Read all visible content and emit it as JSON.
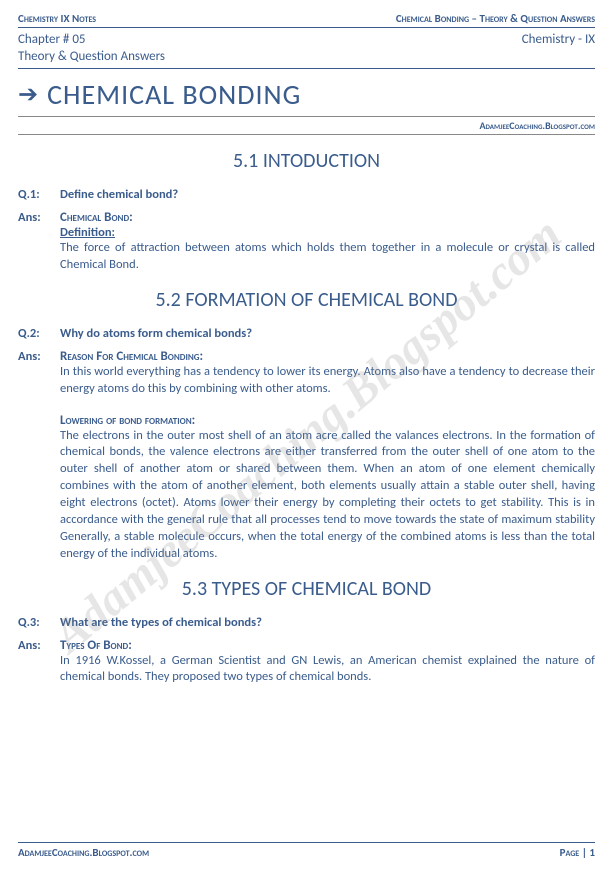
{
  "colors": {
    "primary": "#3a5c8c",
    "text": "#3a5c8c",
    "rule": "#888888",
    "watermark": "rgba(140,140,140,0.22)",
    "background": "#ffffff"
  },
  "typography": {
    "body_font": "Calibri, Segoe UI, Arial, sans-serif",
    "watermark_font": "Georgia, Times New Roman, serif",
    "main_title_size": 28,
    "section_title_size": 20,
    "body_size": 12.5,
    "header_size": 11
  },
  "header": {
    "left": "Chemistry IX Notes",
    "right": "Chemical Bonding – Theory & Question Answers",
    "chapter": "Chapter # 05",
    "grade": "Chemistry - IX",
    "subtitle": "Theory & Question Answers"
  },
  "title": {
    "arrow": "➔",
    "text": "CHEMICAL BONDING"
  },
  "blog": "AdamjeeCoaching.Blogspot.com",
  "watermark": "AdamjeeCoaching.Blogspot.com",
  "sections": {
    "s1": {
      "title": "5.1  INTODUCTION",
      "q_label": "Q.1:",
      "q_text": "Define chemical bond?",
      "a_label": "Ans:",
      "a_head": "Chemical Bond:",
      "a_sub": "Definition:",
      "a_para": "The force of attraction between atoms which holds them together in a molecule or crystal is called Chemical Bond."
    },
    "s2": {
      "title": "5.2  FORMATION OF CHEMICAL BOND",
      "q_label": "Q.2:",
      "q_text": "Why do atoms form chemical bonds?",
      "a_label": "Ans:",
      "a_head": "Reason For Chemical Bonding:",
      "a_para1": "In this world everything has a tendency to lower its energy. Atoms also have a tendency to decrease their energy atoms do this by combining with other atoms.",
      "a_sub2": "Lowering of bond formation:",
      "a_para2": "The electrons in the outer most shell of an atom acre called the valances electrons. In the formation of chemical bonds, the valence electrons are either transferred from the outer shell of one atom to the outer shell of another atom or shared between them. When an atom of one element chemically combines with the atom of another element, both elements usually attain a stable outer shell, having eight electrons (octet). Atoms lower their energy by completing their octets to get stability. This is in accordance with the general rule that all processes tend to move towards the state of maximum stability Generally, a stable molecule occurs, when the total energy of the combined atoms is less than the total energy of the individual atoms."
    },
    "s3": {
      "title": "5.3  TYPES OF CHEMICAL BOND",
      "q_label": "Q.3:",
      "q_text": "What are the types of chemical bonds?",
      "a_label": "Ans:",
      "a_head": "Types Of Bond:",
      "a_para": "In 1916 W.Kossel, a German Scientist and GN Lewis, an American chemist explained the nature of chemical bonds. They proposed two types of chemical bonds."
    }
  },
  "footer": {
    "left": "AdamjeeCoaching.Blogspot.com",
    "right": "Page | 1"
  }
}
